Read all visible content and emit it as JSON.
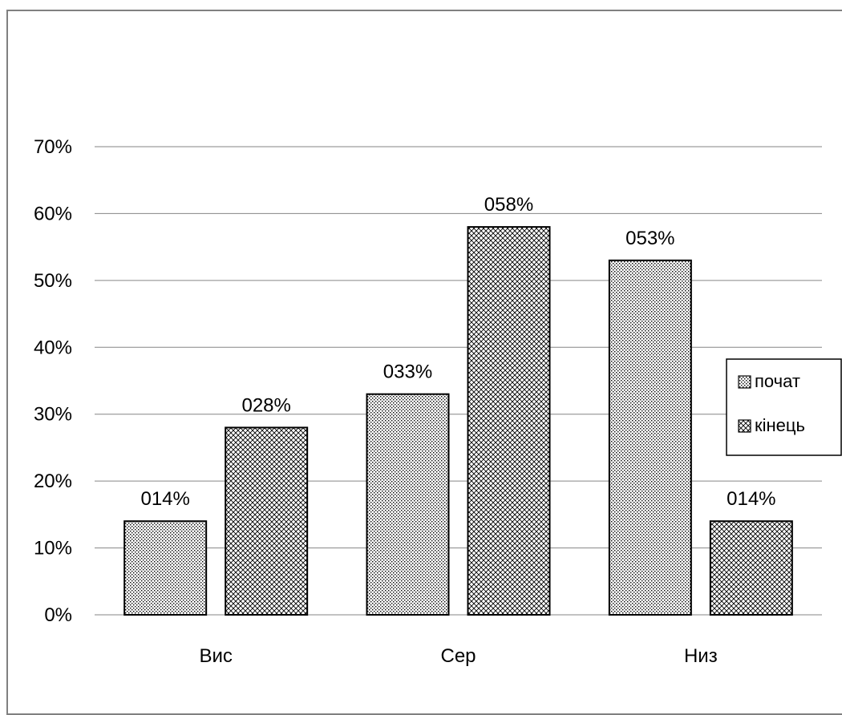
{
  "chart_data": {
    "type": "bar",
    "title": "",
    "xlabel": "",
    "ylabel": "",
    "categories": [
      "Вис",
      "Сер",
      "Низ"
    ],
    "series": [
      {
        "name": "почат",
        "values": [
          14,
          33,
          53
        ],
        "labels": [
          "014%",
          "033%",
          "053%"
        ],
        "pattern": "dots"
      },
      {
        "name": "кінець",
        "values": [
          28,
          58,
          14
        ],
        "labels": [
          "028%",
          "058%",
          "014%"
        ],
        "pattern": "crosshatch"
      }
    ],
    "ylim": [
      0,
      70
    ],
    "yticks": [
      0,
      10,
      20,
      30,
      40,
      50,
      60,
      70
    ],
    "ytick_labels": [
      "0%",
      "10%",
      "20%",
      "30%",
      "40%",
      "50%",
      "60%",
      "70%"
    ],
    "grid": true,
    "legend_position": "right"
  }
}
